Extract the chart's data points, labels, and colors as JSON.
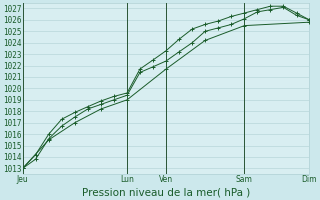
{
  "background_color": "#cce8ec",
  "plot_bg_color": "#d8eef1",
  "grid_color": "#b0d0d4",
  "line_color": "#1a5c2a",
  "xlabel_text": "Pression niveau de la mer( hPa )",
  "xlabel_fontsize": 7.5,
  "tick_fontsize": 5.5,
  "ylim": [
    1012.5,
    1027.5
  ],
  "yticks": [
    1013,
    1014,
    1015,
    1016,
    1017,
    1018,
    1019,
    1020,
    1021,
    1022,
    1023,
    1024,
    1025,
    1026,
    1027
  ],
  "xtick_labels": [
    "Jeu",
    "Lun",
    "Ven",
    "Sam",
    "Dim"
  ],
  "xtick_positions": [
    0.0,
    0.364,
    0.5,
    0.773,
    1.0
  ],
  "vline_positions": [
    0.0,
    0.364,
    0.5,
    0.773,
    1.0
  ],
  "series1_x": [
    0.0,
    0.045,
    0.091,
    0.136,
    0.182,
    0.227,
    0.273,
    0.318,
    0.364,
    0.409,
    0.455,
    0.5,
    0.545,
    0.591,
    0.636,
    0.682,
    0.727,
    0.773,
    0.818,
    0.864,
    0.909,
    0.955,
    1.0
  ],
  "series1_y": [
    1013.0,
    1013.8,
    1015.6,
    1016.7,
    1017.5,
    1018.2,
    1018.6,
    1019.0,
    1019.4,
    1021.4,
    1021.9,
    1022.4,
    1023.2,
    1024.0,
    1025.0,
    1025.3,
    1025.6,
    1026.1,
    1026.7,
    1026.9,
    1027.1,
    1026.4,
    1026.0
  ],
  "series2_x": [
    0.0,
    0.045,
    0.091,
    0.136,
    0.182,
    0.227,
    0.273,
    0.318,
    0.364,
    0.409,
    0.455,
    0.5,
    0.545,
    0.591,
    0.636,
    0.682,
    0.727,
    0.773,
    0.818,
    0.864,
    0.909,
    0.955,
    1.0
  ],
  "series2_y": [
    1013.0,
    1014.2,
    1016.0,
    1017.3,
    1017.9,
    1018.4,
    1018.9,
    1019.3,
    1019.6,
    1021.7,
    1022.5,
    1023.3,
    1024.3,
    1025.2,
    1025.6,
    1025.9,
    1026.3,
    1026.6,
    1026.9,
    1027.2,
    1027.2,
    1026.6,
    1026.0
  ],
  "series3_x": [
    0.0,
    0.091,
    0.182,
    0.273,
    0.364,
    0.5,
    0.636,
    0.773,
    1.0
  ],
  "series3_y": [
    1013.0,
    1015.5,
    1017.0,
    1018.2,
    1019.0,
    1021.7,
    1024.2,
    1025.5,
    1025.8
  ]
}
